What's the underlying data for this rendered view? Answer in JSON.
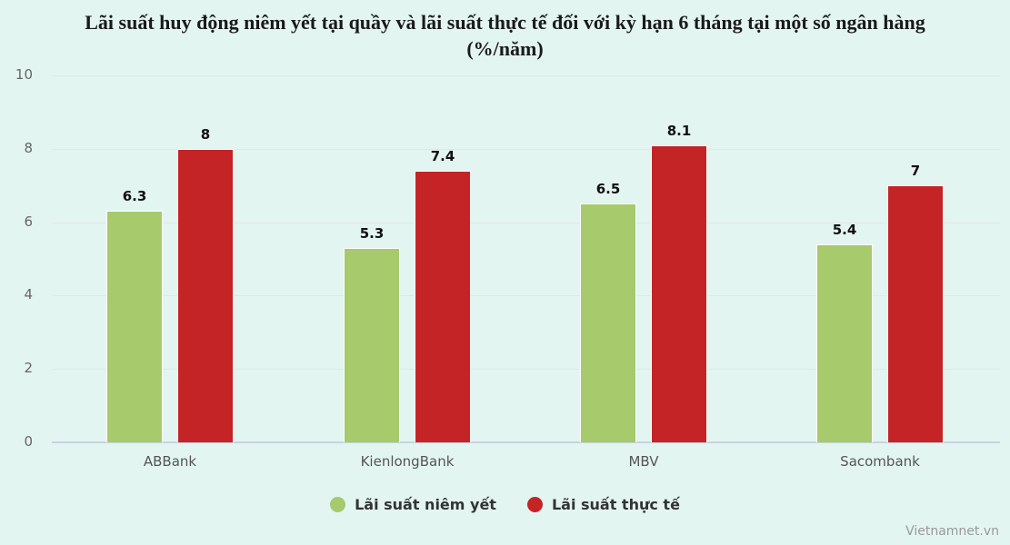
{
  "title": {
    "line1": "Lãi suất huy động niêm yết tại quầy và lãi suất thực tế đối với kỳ hạn 6 tháng tại một số ngân hàng",
    "line2": "(%/năm)"
  },
  "y_ticks": [
    "0",
    "2",
    "4",
    "6",
    "8",
    "10"
  ],
  "categories": [
    "ABBank",
    "KienlongBank",
    "MBV",
    "Sacombank"
  ],
  "bar_labels": {
    "listed": [
      "6.3",
      "5.3",
      "6.5",
      "5.4"
    ],
    "actual": [
      "8",
      "7.4",
      "8.1",
      "7"
    ]
  },
  "legend": {
    "listed": "Lãi suất niêm yết",
    "actual": "Lãi suất thực tế"
  },
  "colors": {
    "listed": "#a6ca6c",
    "actual": "#c42426"
  },
  "credit": "Vietnamnet.vn",
  "chart_data": {
    "type": "bar",
    "title": "Lãi suất huy động niêm yết tại quầy và lãi suất thực tế đối với kỳ hạn 6 tháng tại một số ngân hàng (%/năm)",
    "categories": [
      "ABBank",
      "KienlongBank",
      "MBV",
      "Sacombank"
    ],
    "series": [
      {
        "name": "Lãi suất niêm yết",
        "color": "#a6ca6c",
        "values": [
          6.3,
          5.3,
          6.5,
          5.4
        ]
      },
      {
        "name": "Lãi suất thực tế",
        "color": "#c42426",
        "values": [
          8,
          7.4,
          8.1,
          7
        ]
      }
    ],
    "xlabel": "",
    "ylabel": "",
    "ylim": [
      0,
      10
    ],
    "yticks": [
      0,
      2,
      4,
      6,
      8,
      10
    ],
    "grid": true,
    "legend_position": "bottom",
    "data_labels": true
  }
}
